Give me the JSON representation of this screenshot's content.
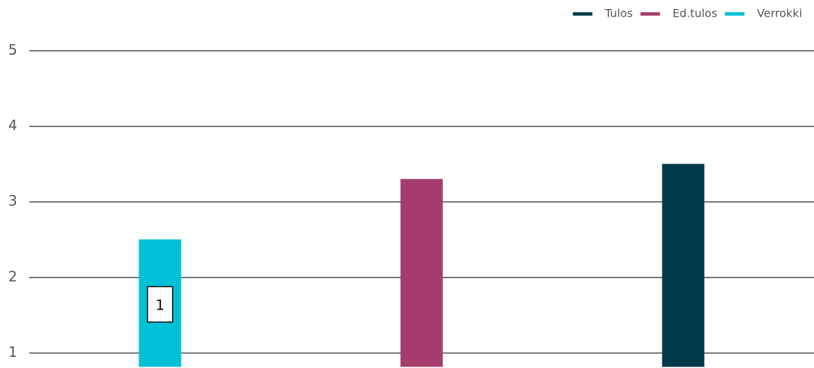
{
  "chart_data": {
    "type": "bar",
    "categories": [
      null,
      null,
      null
    ],
    "series": [
      {
        "name": "Tulos",
        "color": "#003a4a",
        "values": [
          null,
          null,
          3.5
        ]
      },
      {
        "name": "Ed.tulos",
        "color": "#a63d6e",
        "values": [
          null,
          3.3,
          null
        ]
      },
      {
        "name": "Verrokki",
        "color": "#00c0d8",
        "values": [
          2.5,
          null,
          null
        ]
      }
    ],
    "annotation": "1",
    "ylim": [
      0.82,
      5
    ],
    "yticks": [
      1,
      2,
      3,
      4,
      5
    ],
    "grid": true,
    "legend": "top-right"
  }
}
